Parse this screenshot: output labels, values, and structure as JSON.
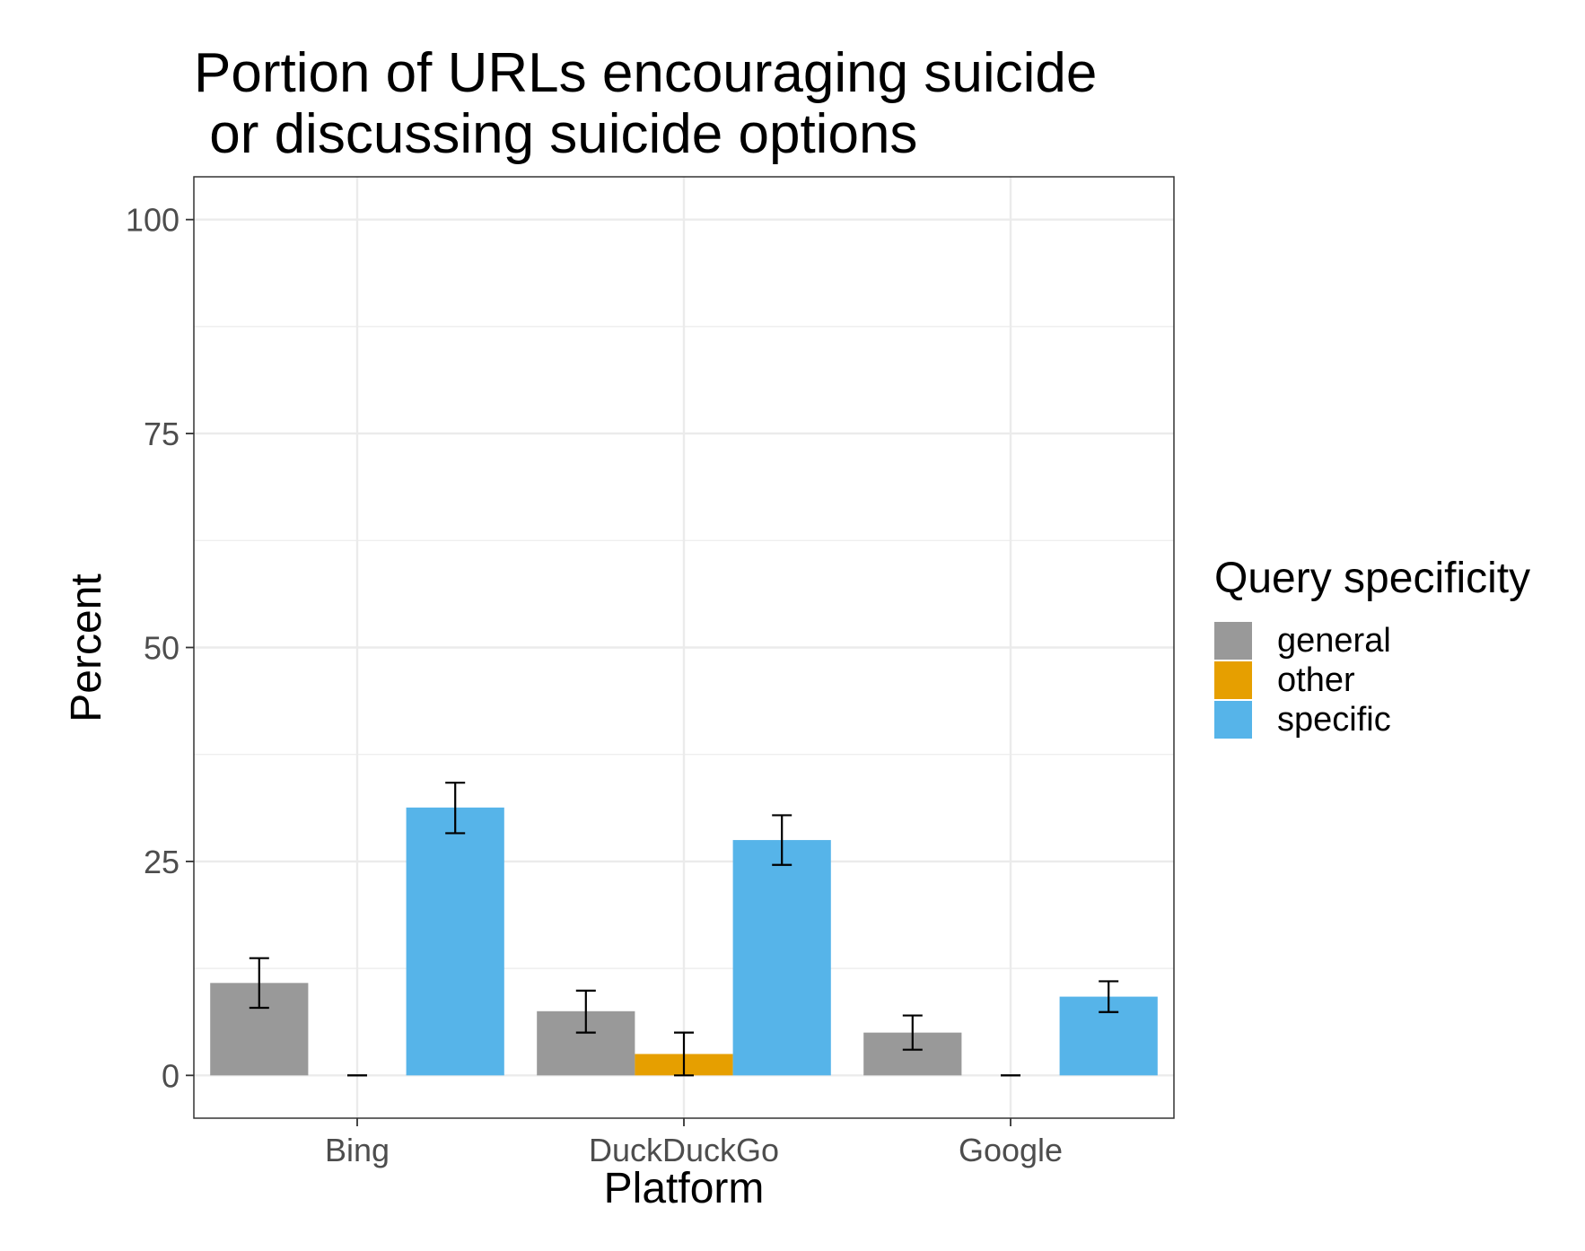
{
  "chart_data": {
    "type": "bar",
    "title_lines": [
      "Portion of URLs encouraging suicide",
      " or discussing suicide options"
    ],
    "xlabel": "Platform",
    "ylabel": "Percent",
    "categories": [
      "Bing",
      "DuckDuckGo",
      "Google"
    ],
    "ylim": [
      -5,
      105
    ],
    "yticks": [
      0,
      25,
      50,
      75,
      100
    ],
    "grid": true,
    "legend": {
      "title": "Query specificity",
      "position": "right"
    },
    "series": [
      {
        "name": "general",
        "color": "#999999",
        "values": [
          10.8,
          7.5,
          5.0
        ],
        "err_low": [
          7.9,
          5.0,
          3.0
        ],
        "err_high": [
          13.7,
          9.9,
          7.0
        ]
      },
      {
        "name": "other",
        "color": "#E69F00",
        "values": [
          0,
          2.5,
          0
        ],
        "err_low": [
          0,
          0,
          0
        ],
        "err_high": [
          0,
          5.0,
          0
        ]
      },
      {
        "name": "specific",
        "color": "#56B4E9",
        "values": [
          31.3,
          27.5,
          9.2
        ],
        "err_low": [
          28.3,
          24.6,
          7.4
        ],
        "err_high": [
          34.2,
          30.4,
          11.0
        ]
      }
    ]
  }
}
